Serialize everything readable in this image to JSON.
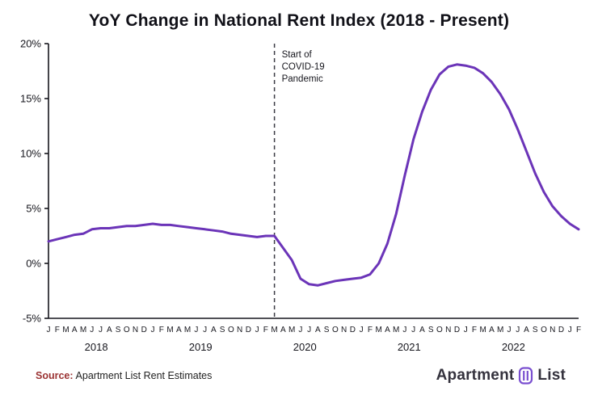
{
  "chart_data": {
    "type": "line",
    "title": "YoY Change in National Rent Index (2018 - Present)",
    "series_name": "YoY change in national rent index (%)",
    "ylim": [
      -5,
      20
    ],
    "y_ticks": [
      {
        "value": 20,
        "label": "20%"
      },
      {
        "value": 15,
        "label": "15%"
      },
      {
        "value": 10,
        "label": "10%"
      },
      {
        "value": 5,
        "label": "5%"
      },
      {
        "value": 0,
        "label": "0%"
      },
      {
        "value": -5,
        "label": "-5%"
      }
    ],
    "x_tick_labels": [
      "J",
      "F",
      "M",
      "A",
      "M",
      "J",
      "J",
      "A",
      "S",
      "O",
      "N",
      "D",
      "J",
      "F",
      "M",
      "A",
      "M",
      "J",
      "J",
      "A",
      "S",
      "O",
      "N",
      "D",
      "J",
      "F",
      "M",
      "A",
      "M",
      "J",
      "J",
      "A",
      "S",
      "O",
      "N",
      "D",
      "J",
      "F",
      "M",
      "A",
      "M",
      "J",
      "J",
      "A",
      "S",
      "O",
      "N",
      "D",
      "J",
      "F",
      "M",
      "A",
      "M",
      "J",
      "J",
      "A",
      "S",
      "O",
      "N",
      "D",
      "J",
      "F"
    ],
    "year_labels": [
      {
        "label": "2018",
        "center_index": 5.5
      },
      {
        "label": "2019",
        "center_index": 17.5
      },
      {
        "label": "2020",
        "center_index": 29.5
      },
      {
        "label": "2021",
        "center_index": 41.5
      },
      {
        "label": "2022",
        "center_index": 53.5
      }
    ],
    "values": [
      2.0,
      2.2,
      2.4,
      2.6,
      2.7,
      3.1,
      3.2,
      3.2,
      3.3,
      3.4,
      3.4,
      3.5,
      3.6,
      3.5,
      3.5,
      3.4,
      3.3,
      3.2,
      3.1,
      3.0,
      2.9,
      2.7,
      2.6,
      2.5,
      2.4,
      2.5,
      2.5,
      1.4,
      0.3,
      -1.4,
      -1.9,
      -2.0,
      -1.8,
      -1.6,
      -1.5,
      -1.4,
      -1.3,
      -1.0,
      0.0,
      1.8,
      4.5,
      8.0,
      11.3,
      13.8,
      15.8,
      17.2,
      17.9,
      18.1,
      18.0,
      17.8,
      17.3,
      16.5,
      15.4,
      14.0,
      12.2,
      10.2,
      8.2,
      6.5,
      5.2,
      4.3,
      3.6,
      3.1
    ],
    "annotation": {
      "lines": [
        "Start of",
        "COVID-19",
        "Pandemic"
      ],
      "month_index": 26,
      "style": "dashed-vertical-line"
    },
    "line_color": "#6b34b8",
    "axis_color": "#16161d",
    "grid": false,
    "legend": false
  },
  "footer": {
    "source_label": "Source:",
    "source_text": "Apartment List Rent Estimates",
    "logo_left": "Apartment",
    "logo_right": "List",
    "logo_icon": "building-icon",
    "logo_color": "#34323d",
    "logo_icon_color": "#7a4fd0"
  }
}
